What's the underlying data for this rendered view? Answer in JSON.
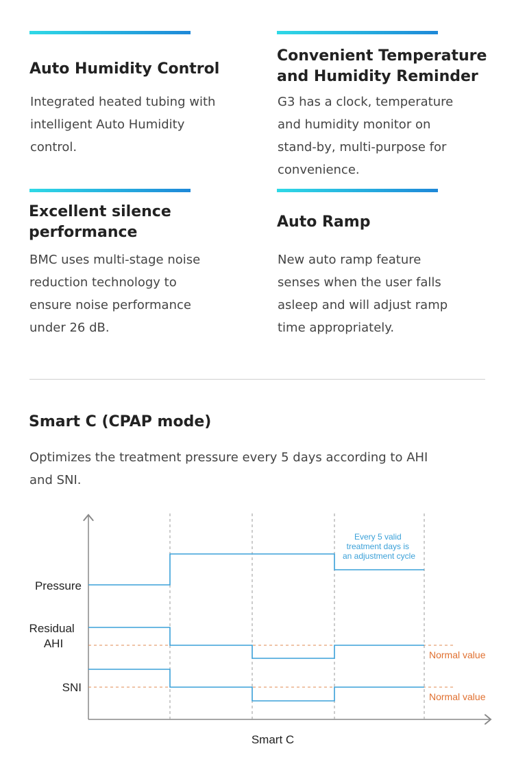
{
  "features": [
    {
      "title_lines": [
        "Auto Humidity Control"
      ],
      "desc_lines": [
        "Integrated heated tubing with",
        "intelligent Auto Humidity",
        "control."
      ]
    },
    {
      "title_lines": [
        "Convenient Temperature",
        "and Humidity Reminder"
      ],
      "desc_lines": [
        "G3 has a clock, temperature",
        "and humidity monitor on",
        "stand-by, multi-purpose for",
        "convenience."
      ]
    },
    {
      "title_lines": [
        "Excellent silence",
        "performance"
      ],
      "desc_lines": [
        "BMC uses multi-stage noise",
        "reduction technology to",
        "ensure noise performance",
        "under 26 dB."
      ]
    },
    {
      "title_lines": [
        "Auto Ramp"
      ],
      "desc_lines": [
        "New auto ramp feature",
        "senses when the user falls",
        "asleep and will adjust ramp",
        "time appropriately."
      ]
    }
  ],
  "section": {
    "title": "Smart C (CPAP mode)",
    "desc_lines": [
      "Optimizes the treatment pressure every 5 days according to AHI",
      "and SNI."
    ]
  },
  "diagram": {
    "labels": {
      "pressure": "Pressure",
      "residual_ahi_lines": [
        "Residual",
        "AHI"
      ],
      "sni": "SNI",
      "x_axis": "Smart C",
      "normal_value": "Normal value",
      "cycle_note_lines": [
        "Every 5 valid",
        "treatment days is",
        "an adjustment cycle"
      ]
    },
    "colors": {
      "signal": "#3aa0d8",
      "normal_line": "#e08a50",
      "normal_text": "#e07030",
      "note_text": "#3aa0d8",
      "axis": "#888888",
      "grid": "#999999",
      "accent_start": "#2fd9e6",
      "accent_end": "#1e88d8"
    }
  }
}
